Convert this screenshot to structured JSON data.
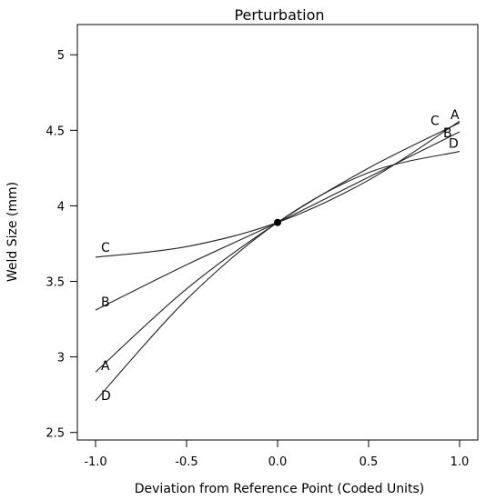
{
  "chart_data": {
    "type": "line",
    "title": "Perturbation",
    "xlabel": "Deviation from Reference Point (Coded Units)",
    "ylabel": "Weld Size (mm)",
    "xlim": [
      -1.1,
      1.1
    ],
    "ylim": [
      2.45,
      5.2
    ],
    "x_ticks": [
      -1.0,
      -0.5,
      0.0,
      0.5,
      1.0
    ],
    "x_tick_labels": [
      "-1.0",
      "-0.5",
      "0.0",
      "0.5",
      "1.0"
    ],
    "y_ticks": [
      2.5,
      3,
      3.5,
      4,
      4.5,
      5
    ],
    "y_tick_labels": [
      "2.5",
      "3",
      "3.5",
      "4",
      "4.5",
      "5"
    ],
    "grid": false,
    "reference_point": {
      "x": 0.0,
      "y": 3.89
    },
    "series": [
      {
        "name": "A",
        "x": [
          -1,
          -0.5,
          0,
          0.5,
          1
        ],
        "y": [
          2.9,
          3.45,
          3.89,
          4.25,
          4.55
        ]
      },
      {
        "name": "B",
        "x": [
          -1,
          -0.5,
          0,
          0.5,
          1
        ],
        "y": [
          3.31,
          3.61,
          3.89,
          4.19,
          4.49
        ]
      },
      {
        "name": "C",
        "x": [
          -1,
          -0.5,
          0,
          0.5,
          1
        ],
        "y": [
          3.66,
          3.73,
          3.89,
          4.17,
          4.56
        ]
      },
      {
        "name": "D",
        "x": [
          -1,
          -0.5,
          0,
          0.5,
          1
        ],
        "y": [
          2.71,
          3.38,
          3.89,
          4.22,
          4.36
        ]
      }
    ]
  }
}
